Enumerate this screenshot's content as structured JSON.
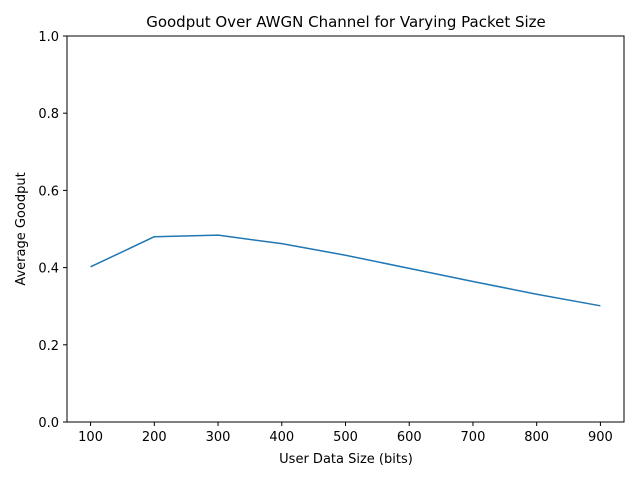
{
  "chart_data": {
    "type": "line",
    "title": "Goodput Over AWGN Channel for Varying Packet Size",
    "xlabel": "User Data Size (bits)",
    "ylabel": "Average Goodput",
    "x": [
      100,
      200,
      300,
      400,
      500,
      600,
      700,
      800,
      900
    ],
    "series": [
      {
        "color": "#1f77b4",
        "values": [
          0.402,
          0.48,
          0.484,
          0.462,
          0.432,
          0.398,
          0.364,
          0.331,
          0.301
        ]
      }
    ],
    "xlim": [
      63,
      937
    ],
    "ylim": [
      0,
      1
    ],
    "xticks": [
      100,
      200,
      300,
      400,
      500,
      600,
      700,
      800,
      900
    ],
    "yticks": [
      0.0,
      0.2,
      0.4,
      0.6,
      0.8,
      1.0
    ],
    "xtick_labels": [
      "100",
      "200",
      "300",
      "400",
      "500",
      "600",
      "700",
      "800",
      "900"
    ],
    "ytick_labels": [
      "0.0",
      "0.2",
      "0.4",
      "0.6",
      "0.8",
      "1.0"
    ],
    "grid": false,
    "legend": false
  }
}
